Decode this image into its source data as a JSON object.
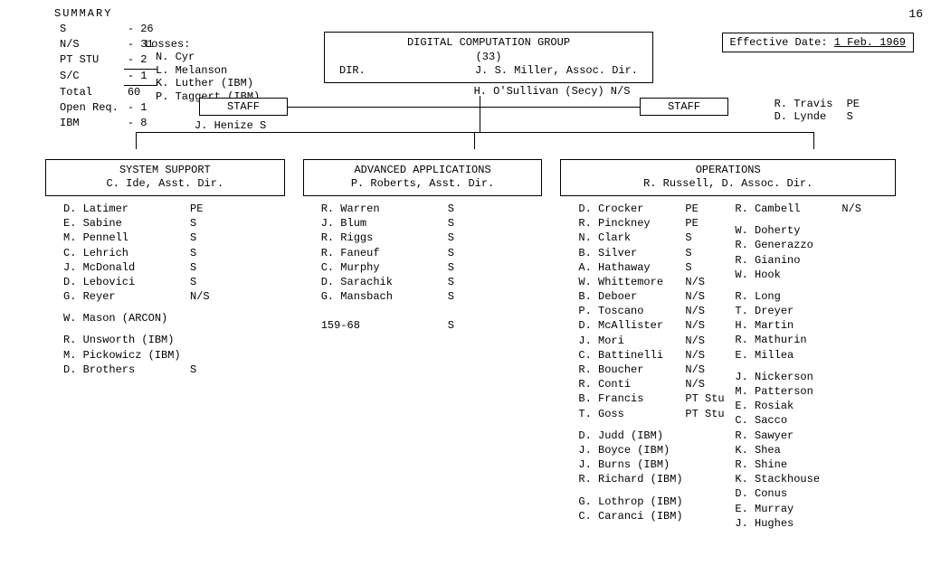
{
  "page_number": "16",
  "summary": {
    "title": "SUMMARY",
    "rows": [
      {
        "label": "S",
        "value": "- 26"
      },
      {
        "label": "N/S",
        "value": "- 31"
      },
      {
        "label": "PT STU",
        "value": "-  2"
      },
      {
        "label": "S/C",
        "value": "-  1"
      }
    ],
    "total_label": "Total",
    "total_value": "60",
    "extra": [
      {
        "label": "Open Req.",
        "value": "-  1"
      },
      {
        "label": "IBM",
        "value": "-  8"
      }
    ]
  },
  "losses": {
    "title": "Losses:",
    "items": [
      "N. Cyr",
      "L. Melanson",
      "K. Luther  (IBM)",
      "P. Taggert (IBM)"
    ]
  },
  "effective": {
    "label": "Effective Date:",
    "value": "1 Feb. 1969"
  },
  "root": {
    "title": "DIGITAL COMPUTATION GROUP",
    "count": "(33)",
    "dir_label": "DIR.",
    "dir_name": "J. S. Miller, Assoc. Dir."
  },
  "secy": "H. O'Sullivan   (Secy) N/S",
  "staff": {
    "label": "STAFF",
    "left_person": "J. Henize    S",
    "right_people": [
      {
        "name": "R. Travis",
        "code": "PE"
      },
      {
        "name": "D. Lynde",
        "code": "S"
      }
    ]
  },
  "depts": {
    "system_support": {
      "title": "SYSTEM SUPPORT",
      "head": "C. Ide, Asst. Dir.",
      "people": [
        {
          "name": "D. Latimer",
          "code": "PE"
        },
        {
          "name": "E. Sabine",
          "code": "S"
        },
        {
          "name": "M. Pennell",
          "code": "S"
        },
        {
          "name": "C. Lehrich",
          "code": "S"
        },
        {
          "name": "J. McDonald",
          "code": "S"
        },
        {
          "name": "D. Lebovici",
          "code": "S"
        },
        {
          "name": "G. Reyer",
          "code": "N/S"
        }
      ],
      "extra1": [
        "W. Mason (ARCON)"
      ],
      "extra2": [
        "R. Unsworth (IBM)",
        "M. Pickowicz (IBM)"
      ],
      "tail": [
        {
          "name": "D. Brothers",
          "code": "S"
        }
      ]
    },
    "advanced": {
      "title": "ADVANCED APPLICATIONS",
      "head": "P. Roberts, Asst. Dir.",
      "people": [
        {
          "name": "R. Warren",
          "code": "S"
        },
        {
          "name": "J. Blum",
          "code": "S"
        },
        {
          "name": "R. Riggs",
          "code": "S"
        },
        {
          "name": "R. Faneuf",
          "code": "S"
        },
        {
          "name": "C. Murphy",
          "code": "S"
        },
        {
          "name": "D. Sarachik",
          "code": "S"
        },
        {
          "name": "G. Mansbach",
          "code": "S"
        }
      ],
      "tail": [
        {
          "name": "159-68",
          "code": "S"
        }
      ]
    },
    "operations": {
      "title": "OPERATIONS",
      "head": "R. Russell, D. Assoc. Dir.",
      "colA": [
        {
          "name": "D. Crocker",
          "code": "PE"
        },
        {
          "name": "R. Pinckney",
          "code": "PE"
        },
        {
          "name": "N. Clark",
          "code": "S"
        },
        {
          "name": "B. Silver",
          "code": "S"
        },
        {
          "name": "A. Hathaway",
          "code": "S"
        },
        {
          "name": "W. Whittemore",
          "code": "N/S"
        },
        {
          "name": "B. Deboer",
          "code": "N/S"
        },
        {
          "name": "P. Toscano",
          "code": "N/S"
        },
        {
          "name": "D. McAllister",
          "code": "N/S"
        },
        {
          "name": "J. Mori",
          "code": "N/S"
        },
        {
          "name": "C. Battinelli",
          "code": "N/S"
        },
        {
          "name": "R. Boucher",
          "code": "N/S"
        },
        {
          "name": "R. Conti",
          "code": "N/S"
        },
        {
          "name": "B. Francis",
          "code": "PT Stu"
        },
        {
          "name": "T. Goss",
          "code": "PT Stu"
        }
      ],
      "colA_ibm": [
        "D. Judd (IBM)",
        "J. Boyce (IBM)",
        "J. Burns (IBM)",
        "R. Richard (IBM)"
      ],
      "colA_ibm2": [
        "G. Lothrop (IBM)",
        "C. Caranci (IBM)"
      ],
      "colB_top": [
        {
          "name": "R. Cambell",
          "code": "N/S"
        }
      ],
      "colB": [
        "W. Doherty",
        "R. Generazzo",
        "R. Gianino",
        "W. Hook",
        "",
        "R. Long",
        "T. Dreyer",
        "H. Martin",
        "R. Mathurin",
        "E. Millea",
        "",
        "J. Nickerson",
        "M. Patterson",
        "E. Rosiak",
        "C. Sacco",
        "R. Sawyer",
        "K. Shea",
        "R. Shine",
        "K. Stackhouse",
        "D. Conus",
        "E. Murray",
        "J. Hughes"
      ]
    }
  }
}
